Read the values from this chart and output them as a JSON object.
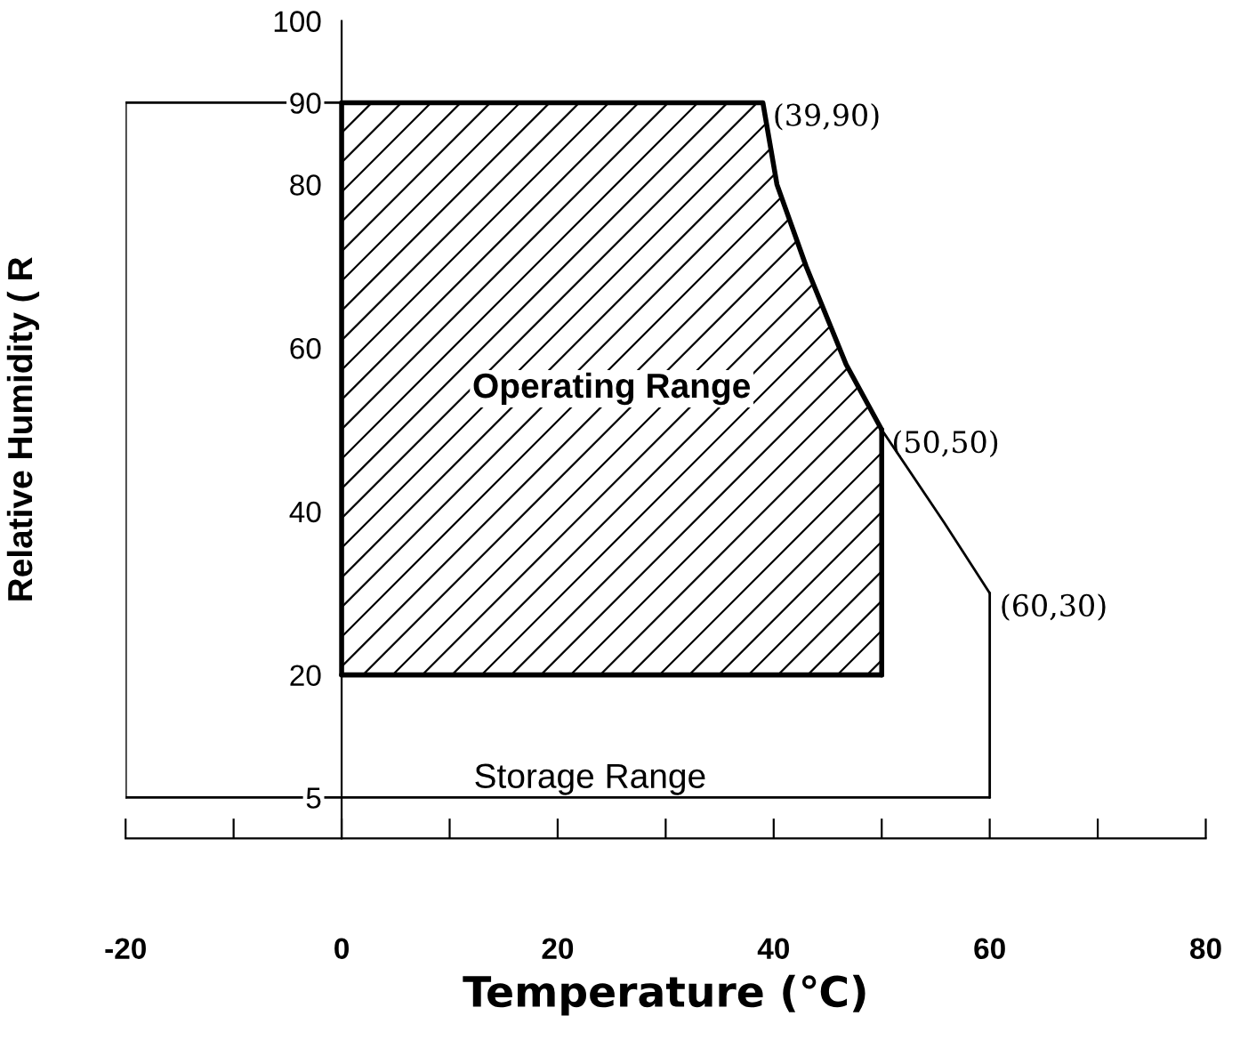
{
  "chart_data": {
    "type": "line",
    "xlabel": "Temperature (℃)",
    "ylabel": "Relative Humidity ( R",
    "xlim": [
      -20,
      80
    ],
    "ylim": [
      0,
      100
    ],
    "xticks": [
      -20,
      {
        "value": -10,
        "label": null
      },
      0,
      {
        "value": 10,
        "label": null
      },
      20,
      {
        "value": 30,
        "label": null
      },
      40,
      {
        "value": 50,
        "label": null
      },
      60,
      {
        "value": 70,
        "label": null
      },
      80
    ],
    "yticks": [
      5,
      20,
      40,
      60,
      80,
      90,
      100
    ],
    "grid": false,
    "legend": false,
    "marker": "none",
    "line_style": "solid",
    "series": [
      {
        "color": "#000000",
        "x": [
          -20,
          39,
          40.3,
          43,
          46.7,
          50,
          55.8,
          60
        ],
        "values": [
          90,
          90,
          80,
          70,
          58,
          50,
          38.6,
          30
        ]
      },
      {
        "name": "Storage Range",
        "color": "#000000",
        "x": [
          -20,
          60
        ],
        "values": [
          5,
          5
        ]
      },
      {
        "color": "#000000",
        "x": [
          -20,
          -20
        ],
        "values": [
          5,
          90
        ]
      },
      {
        "color": "#000000",
        "x": [
          60,
          60
        ],
        "values": [
          30,
          5
        ]
      },
      {
        "name": "Operating Range",
        "color": "#000000",
        "x": [
          0,
          39,
          40.3,
          43,
          46.7,
          50
        ],
        "values": [
          90,
          90,
          80,
          70,
          58,
          50
        ]
      },
      {
        "color": "#000000",
        "x": [
          0,
          50
        ],
        "values": [
          20,
          20
        ]
      },
      {
        "color": "#000000",
        "x": [
          0,
          0
        ],
        "values": [
          20,
          90
        ]
      },
      {
        "color": "#000000",
        "x": [
          50,
          50
        ],
        "values": [
          20,
          50
        ]
      }
    ],
    "annotations": [
      {
        "text": "(39,90)",
        "x": 39,
        "y": 90
      },
      {
        "text": "(50,50)",
        "x": 50,
        "y": 50
      },
      {
        "text": "(60,30)",
        "x": 60,
        "y": 30
      }
    ]
  }
}
